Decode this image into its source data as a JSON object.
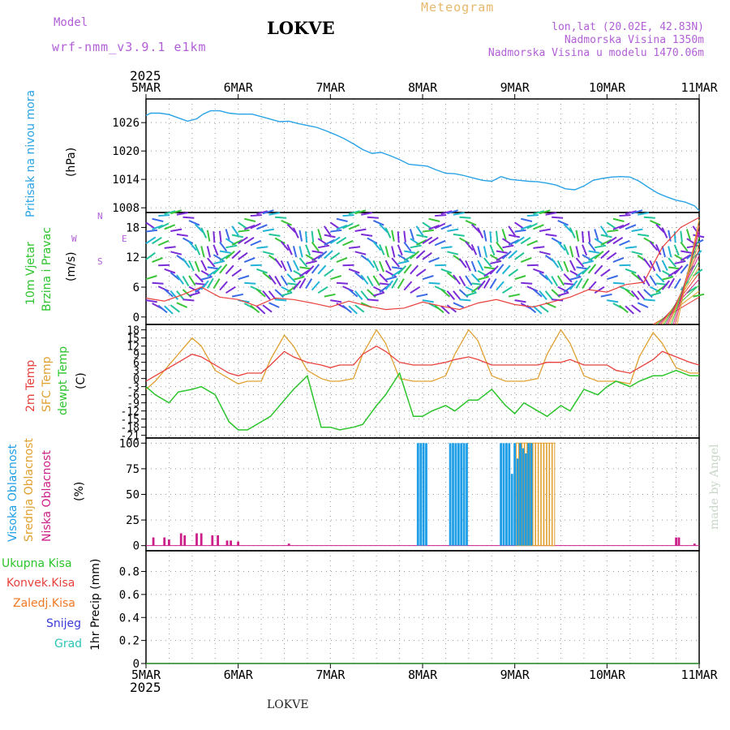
{
  "header": {
    "model_label": "Model",
    "model_name": "wrf-nmm_v3.9.1 e1km",
    "station": "LOKVE",
    "product": "Meteogram",
    "coords": "lon,lat (20.02E, 42.83N)",
    "altitude": "Nadmorska Visina 1350m",
    "model_altitude": "Nadmorska Visina u modelu 1470.06m"
  },
  "footer": {
    "station": "LOKVE",
    "credit": "made by Angel"
  },
  "time_axis": {
    "year": "2025",
    "ticks": [
      "5MAR",
      "6MAR",
      "7MAR",
      "8MAR",
      "9MAR",
      "10MAR",
      "11MAR"
    ]
  },
  "colors": {
    "pressure": "#29a3e6",
    "temp2m": "#e8403c",
    "sfc_temp": "#e0a030",
    "dewpoint": "#2cc42c",
    "high_cloud": "#1e9ee6",
    "mid_cloud": "#e0a030",
    "low_cloud": "#cc1f8a",
    "wind_label": "#2cc42c",
    "total_precip": "#2cc42c",
    "conv_precip": "#e8403c",
    "frz_precip": "#f07820",
    "snow": "#3a3adc",
    "hail": "#2cc4b4"
  },
  "chart_data": [
    {
      "type": "line",
      "name": "pressure-panel",
      "ylabel": "Pritisak na nivou mora",
      "unit": "(hPa)",
      "yticks": [
        "1008",
        "1014",
        "1020",
        "1026"
      ],
      "ylim": [
        1007,
        1031
      ],
      "x_days": [
        0,
        0.05,
        0.15,
        0.25,
        0.35,
        0.45,
        0.55,
        0.62,
        0.7,
        0.8,
        0.9,
        1.0,
        1.05,
        1.15,
        1.3,
        1.45,
        1.55,
        1.65,
        1.75,
        1.85,
        1.95,
        2.05,
        2.15,
        2.25,
        2.35,
        2.45,
        2.55,
        2.65,
        2.75,
        2.85,
        2.95,
        3.05,
        3.15,
        3.25,
        3.35,
        3.45,
        3.55,
        3.65,
        3.75,
        3.85,
        3.95,
        4.05,
        4.15,
        4.25,
        4.35,
        4.45,
        4.55,
        4.65,
        4.75,
        4.85,
        4.95,
        5.05,
        5.15,
        5.25,
        5.35,
        5.45,
        5.55,
        5.65,
        5.75,
        5.85,
        5.95,
        6.0
      ],
      "values": [
        1027.5,
        1028.0,
        1028.0,
        1027.7,
        1027.0,
        1026.3,
        1026.8,
        1027.8,
        1028.5,
        1028.5,
        1028.0,
        1027.8,
        1027.8,
        1027.8,
        1027.0,
        1026.2,
        1026.3,
        1025.8,
        1025.4,
        1025.0,
        1024.3,
        1023.5,
        1022.6,
        1021.5,
        1020.3,
        1019.5,
        1019.7,
        1019.0,
        1018.2,
        1017.2,
        1017.0,
        1016.8,
        1016.0,
        1015.3,
        1015.2,
        1014.8,
        1014.3,
        1013.8,
        1013.6,
        1014.6,
        1014.0,
        1013.8,
        1013.6,
        1013.5,
        1013.2,
        1012.8,
        1012.0,
        1011.8,
        1012.6,
        1013.8,
        1014.2,
        1014.5,
        1014.6,
        1014.5,
        1013.6,
        1012.3,
        1011.1,
        1010.3,
        1009.6,
        1009.2,
        1008.4,
        1007.4
      ]
    },
    {
      "type": "line",
      "name": "wind-panel",
      "ylabel": "10m Vjetar",
      "ylabel2": "Brzina i Pravac",
      "unit": "(m/s)",
      "compass": {
        "n": "N",
        "s": "S",
        "e": "E",
        "w": "W"
      },
      "yticks": [
        "0",
        "6",
        "12",
        "18"
      ],
      "ylim": [
        -1.5,
        21
      ],
      "x_days": [
        0,
        0.2,
        0.4,
        0.6,
        0.8,
        1.0,
        1.2,
        1.4,
        1.6,
        1.8,
        2.0,
        2.2,
        2.4,
        2.6,
        2.8,
        3.0,
        3.2,
        3.4,
        3.6,
        3.8,
        4.0,
        4.2,
        4.4,
        4.6,
        4.8,
        5.0,
        5.2,
        5.4,
        5.6,
        5.8,
        6.0
      ],
      "speed": [
        3.8,
        3.2,
        4.5,
        6.0,
        4.0,
        3.5,
        2.2,
        3.8,
        3.5,
        2.8,
        2.0,
        3.2,
        2.2,
        1.5,
        1.8,
        3.0,
        2.2,
        1.5,
        2.8,
        3.5,
        2.5,
        2.0,
        3.0,
        4.0,
        5.5,
        5.0,
        6.5,
        7.0,
        14.0,
        18.0,
        20.0
      ]
    },
    {
      "type": "line",
      "name": "temperature-panel",
      "series_labels": [
        "2m Temp",
        "SFC Temp",
        "dewpt Temp"
      ],
      "unit": "(C)",
      "yticks": [
        "-21",
        "-18",
        "-15",
        "-12",
        "-9",
        "-6",
        "-3",
        "0",
        "3",
        "6",
        "9",
        "12",
        "15",
        "18"
      ],
      "ylim": [
        -22,
        20
      ],
      "x_days": [
        0,
        0.1,
        0.25,
        0.35,
        0.5,
        0.6,
        0.75,
        0.9,
        1.0,
        1.1,
        1.25,
        1.35,
        1.5,
        1.6,
        1.75,
        1.9,
        2.0,
        2.1,
        2.25,
        2.35,
        2.5,
        2.6,
        2.75,
        2.9,
        3.0,
        3.1,
        3.25,
        3.35,
        3.5,
        3.6,
        3.75,
        3.9,
        4.0,
        4.1,
        4.25,
        4.35,
        4.5,
        4.6,
        4.75,
        4.9,
        5.0,
        5.1,
        5.25,
        5.35,
        5.5,
        5.6,
        5.75,
        5.9,
        6.0
      ],
      "temp2m": [
        -1,
        1,
        4,
        6,
        9,
        8,
        5,
        2,
        1,
        2,
        2,
        5,
        10,
        8,
        6,
        5,
        4,
        5,
        5,
        9,
        12,
        10,
        6,
        5,
        5,
        5,
        6,
        7,
        8,
        7,
        5,
        5,
        5,
        5,
        5,
        6,
        6,
        7,
        5,
        5,
        5,
        3,
        2,
        4,
        7,
        10,
        8,
        6,
        5
      ],
      "sfc_temp": [
        -4,
        -1,
        5,
        9,
        15,
        12,
        3,
        0,
        -2,
        -1,
        -1,
        7,
        16,
        12,
        3,
        0,
        -1,
        -1,
        0,
        9,
        18,
        13,
        0,
        -1,
        -1,
        -1,
        1,
        9,
        18,
        14,
        1,
        -1,
        -1,
        -1,
        0,
        9,
        18,
        13,
        1,
        -1,
        -1,
        -1,
        -2,
        8,
        17,
        13,
        4,
        2,
        2
      ],
      "dewpoint": [
        -3,
        -6,
        -9,
        -5,
        -4,
        -3,
        -6,
        -16,
        -19,
        -19,
        -16,
        -14,
        -8,
        -4,
        1,
        -18,
        -18,
        -19,
        -18,
        -17,
        -10,
        -6,
        2,
        -14,
        -14,
        -12,
        -10,
        -12,
        -8,
        -8,
        -4,
        -10,
        -13,
        -9,
        -12,
        -14,
        -10,
        -12,
        -4,
        -6,
        -3,
        -1,
        -3,
        -1,
        1,
        1,
        3,
        1,
        1
      ]
    },
    {
      "type": "bar",
      "name": "cloud-panel",
      "series_labels": [
        "Visoka Oblacnost",
        "Srednja Oblacnost",
        "Niska Oblacnost"
      ],
      "unit": "(%)",
      "yticks": [
        "0",
        "25",
        "50",
        "75",
        "100"
      ],
      "ylim": [
        -5,
        105
      ],
      "high_x": [
        2.95,
        2.98,
        3.01,
        3.04,
        3.3,
        3.33,
        3.36,
        3.39,
        3.42,
        3.45,
        3.48,
        3.85,
        3.88,
        3.91,
        3.94,
        3.97,
        4.0,
        4.03,
        4.06,
        4.09,
        4.12,
        4.15,
        4.18
      ],
      "high_v": [
        100,
        100,
        100,
        100,
        100,
        100,
        100,
        100,
        100,
        100,
        100,
        100,
        100,
        100,
        100,
        70,
        100,
        85,
        100,
        95,
        90,
        100,
        100
      ],
      "mid_x": [
        4.03,
        4.06,
        4.09,
        4.12,
        4.15,
        4.18,
        4.21,
        4.24,
        4.27,
        4.3,
        4.33,
        4.36,
        4.39,
        4.42
      ],
      "mid_v": [
        100,
        100,
        100,
        100,
        100,
        100,
        100,
        100,
        100,
        100,
        100,
        100,
        100,
        100
      ],
      "low_x": [
        0.08,
        0.2,
        0.25,
        0.38,
        0.42,
        0.55,
        0.6,
        0.72,
        0.78,
        0.88,
        0.92,
        1.0,
        1.55,
        5.75,
        5.78,
        5.95
      ],
      "low_v": [
        8,
        8,
        6,
        12,
        10,
        12,
        12,
        10,
        10,
        5,
        5,
        4,
        2,
        8,
        8,
        2
      ]
    },
    {
      "type": "line",
      "name": "precip-panel",
      "series_labels": [
        "Ukupna Kisa",
        "Konvek.Kisa",
        "Zaledj.Kisa",
        "Snijeg",
        "Grad"
      ],
      "unit": "1hr Precip (mm)",
      "yticks": [
        "0",
        "0.2",
        "0.4",
        "0.6",
        "0.8"
      ],
      "ylim": [
        0,
        0.98
      ],
      "values": [
        0,
        0,
        0,
        0,
        0,
        0,
        0
      ]
    }
  ]
}
